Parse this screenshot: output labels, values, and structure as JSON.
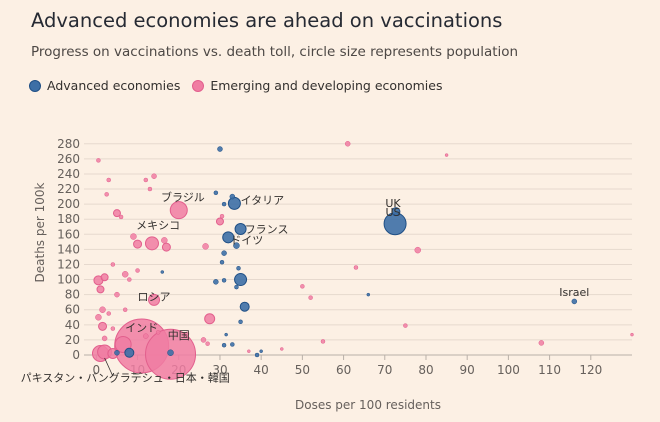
{
  "chart_data": {
    "type": "scatter",
    "title": "Advanced economies are ahead on vaccinations",
    "subtitle": "Progress on vaccinations vs. death toll, circle size represents population",
    "xlabel": "Doses per 100 residents",
    "ylabel": "Deaths per 100k",
    "xlim": [
      -3,
      130
    ],
    "ylim": [
      0,
      285
    ],
    "xticks": [
      0,
      10,
      20,
      30,
      40,
      50,
      60,
      70,
      80,
      90,
      100,
      110,
      120
    ],
    "yticks": [
      0,
      20,
      40,
      60,
      80,
      100,
      120,
      140,
      160,
      180,
      200,
      220,
      240,
      260,
      280
    ],
    "grid": "horizontal",
    "legend_position": "top-left",
    "series": [
      {
        "name": "Advanced economies",
        "color": "#3d6fa6",
        "stroke": "#1f4f85",
        "points": [
          {
            "x": 72.5,
            "y": 174,
            "size": 11
          },
          {
            "x": 72.7,
            "y": 190,
            "size": 4
          },
          {
            "x": 33.5,
            "y": 201,
            "size": 6
          },
          {
            "x": 35,
            "y": 167,
            "size": 5.5
          },
          {
            "x": 32,
            "y": 156,
            "size": 5.5
          },
          {
            "x": 34,
            "y": 145,
            "size": 3
          },
          {
            "x": 33,
            "y": 210,
            "size": 2.5
          },
          {
            "x": 29,
            "y": 215,
            "size": 2
          },
          {
            "x": 30,
            "y": 273,
            "size": 2.5
          },
          {
            "x": 31,
            "y": 200,
            "size": 2
          },
          {
            "x": 35,
            "y": 100,
            "size": 6
          },
          {
            "x": 36,
            "y": 64,
            "size": 4.5
          },
          {
            "x": 34,
            "y": 90,
            "size": 2
          },
          {
            "x": 31,
            "y": 135,
            "size": 2.5
          },
          {
            "x": 30.5,
            "y": 123,
            "size": 2
          },
          {
            "x": 34.5,
            "y": 115,
            "size": 2
          },
          {
            "x": 29,
            "y": 97,
            "size": 2.5
          },
          {
            "x": 31,
            "y": 99,
            "size": 2
          },
          {
            "x": 35,
            "y": 44,
            "size": 2
          },
          {
            "x": 31.5,
            "y": 27,
            "size": 1.5
          },
          {
            "x": 31,
            "y": 13,
            "size": 2
          },
          {
            "x": 33,
            "y": 14,
            "size": 2
          },
          {
            "x": 39,
            "y": 0,
            "size": 2
          },
          {
            "x": 40,
            "y": 5,
            "size": 1.5
          },
          {
            "x": 116,
            "y": 71,
            "size": 2.5
          },
          {
            "x": 66,
            "y": 80,
            "size": 1.5
          },
          {
            "x": 16,
            "y": 110,
            "size": 1.5
          },
          {
            "x": 18,
            "y": 3,
            "size": 3
          },
          {
            "x": 8,
            "y": 3,
            "size": 4.5
          },
          {
            "x": 5,
            "y": 3,
            "size": 2.5
          }
        ]
      },
      {
        "name": "Emerging and developing economies",
        "color": "#f07da2",
        "stroke": "#e25f8d",
        "points": [
          {
            "x": 11,
            "y": 12,
            "size": 27
          },
          {
            "x": 18,
            "y": 1,
            "size": 25
          },
          {
            "x": 1,
            "y": 2,
            "size": 8
          },
          {
            "x": 2,
            "y": 4,
            "size": 7
          },
          {
            "x": 4,
            "y": 2,
            "size": 5
          },
          {
            "x": 6.5,
            "y": 14,
            "size": 8
          },
          {
            "x": 20,
            "y": 192,
            "size": 8.5
          },
          {
            "x": 13.5,
            "y": 148,
            "size": 6.5
          },
          {
            "x": 14,
            "y": 73,
            "size": 5.5
          },
          {
            "x": 27.5,
            "y": 48,
            "size": 5
          },
          {
            "x": 0.5,
            "y": 99,
            "size": 4.5
          },
          {
            "x": 1,
            "y": 87,
            "size": 3.5
          },
          {
            "x": 2,
            "y": 103,
            "size": 3.5
          },
          {
            "x": 1.5,
            "y": 38,
            "size": 4
          },
          {
            "x": 0.5,
            "y": 50,
            "size": 3
          },
          {
            "x": 10,
            "y": 147,
            "size": 4
          },
          {
            "x": 17,
            "y": 143,
            "size": 4
          },
          {
            "x": 16.5,
            "y": 152,
            "size": 3
          },
          {
            "x": 5,
            "y": 188,
            "size": 3.5
          },
          {
            "x": 9,
            "y": 157,
            "size": 3
          },
          {
            "x": 14,
            "y": 237,
            "size": 2.5
          },
          {
            "x": 26.5,
            "y": 144,
            "size": 3
          },
          {
            "x": 30,
            "y": 177,
            "size": 3.5
          },
          {
            "x": 30.5,
            "y": 184,
            "size": 2
          },
          {
            "x": 13,
            "y": 220,
            "size": 2
          },
          {
            "x": 12,
            "y": 232,
            "size": 2
          },
          {
            "x": 3,
            "y": 232,
            "size": 2
          },
          {
            "x": 6,
            "y": 183,
            "size": 2
          },
          {
            "x": 2.5,
            "y": 213,
            "size": 2
          },
          {
            "x": 0.5,
            "y": 258,
            "size": 2
          },
          {
            "x": 61,
            "y": 280,
            "size": 2.5
          },
          {
            "x": 78,
            "y": 139,
            "size": 3
          },
          {
            "x": 108,
            "y": 16,
            "size": 2.5
          },
          {
            "x": 50,
            "y": 91,
            "size": 2
          },
          {
            "x": 52,
            "y": 76,
            "size": 2
          },
          {
            "x": 63,
            "y": 116,
            "size": 2
          },
          {
            "x": 75,
            "y": 39,
            "size": 2
          },
          {
            "x": 55,
            "y": 18,
            "size": 2
          },
          {
            "x": 7,
            "y": 107,
            "size": 3
          },
          {
            "x": 8,
            "y": 100,
            "size": 2
          },
          {
            "x": 4,
            "y": 120,
            "size": 2
          },
          {
            "x": 10,
            "y": 112,
            "size": 2
          },
          {
            "x": 1.5,
            "y": 60,
            "size": 3
          },
          {
            "x": 3,
            "y": 55,
            "size": 2
          },
          {
            "x": 7,
            "y": 60,
            "size": 2
          },
          {
            "x": 5,
            "y": 80,
            "size": 2.5
          },
          {
            "x": 12,
            "y": 25,
            "size": 2.5
          },
          {
            "x": 15,
            "y": 30,
            "size": 2
          },
          {
            "x": 26,
            "y": 20,
            "size": 2.5
          },
          {
            "x": 27,
            "y": 15,
            "size": 2
          },
          {
            "x": 22,
            "y": 28,
            "size": 2
          },
          {
            "x": 2,
            "y": 22,
            "size": 2.5
          },
          {
            "x": 4,
            "y": 35,
            "size": 2
          },
          {
            "x": 37,
            "y": 5,
            "size": 1.5
          },
          {
            "x": 45,
            "y": 8,
            "size": 1.5
          },
          {
            "x": 85,
            "y": 265,
            "size": 1.5
          },
          {
            "x": 130,
            "y": 27,
            "size": 1.5
          }
        ]
      }
    ],
    "annotations": [
      {
        "text": "UK",
        "x": 72,
        "y": 196,
        "anchor": "middle"
      },
      {
        "text": "US",
        "x": 72,
        "y": 184,
        "anchor": "middle"
      },
      {
        "text": "Israel",
        "x": 116,
        "y": 78,
        "anchor": "middle"
      },
      {
        "text": "イタリア",
        "x": 35,
        "y": 200,
        "anchor": "start"
      },
      {
        "text": "フランス",
        "x": 36,
        "y": 162,
        "anchor": "start"
      },
      {
        "text": "ドイツ",
        "x": 32.5,
        "y": 147,
        "anchor": "start"
      },
      {
        "text": "ブラジル",
        "x": 21,
        "y": 204,
        "anchor": "middle"
      },
      {
        "text": "メキシコ",
        "x": 15,
        "y": 167,
        "anchor": "middle"
      },
      {
        "text": "ロシア",
        "x": 14,
        "y": 72,
        "anchor": "middle"
      },
      {
        "text": "インド",
        "x": 11,
        "y": 31,
        "anchor": "middle"
      },
      {
        "text": "中国",
        "x": 20,
        "y": 21,
        "anchor": "middle"
      },
      {
        "text": "パキスタン・バングラデシュ・日本・韓国",
        "x": 7,
        "y": -35,
        "anchor": "middle"
      }
    ]
  }
}
